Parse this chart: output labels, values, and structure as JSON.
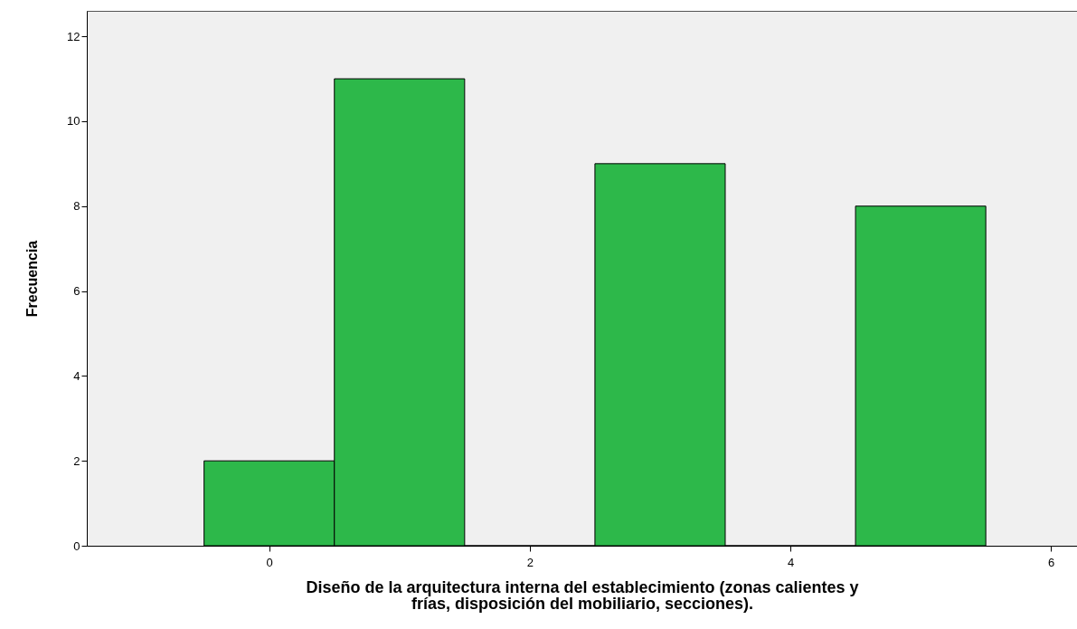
{
  "chart_data": {
    "type": "histogram",
    "xlabel": "Diseño de la arquitectura interna del establecimiento (zonas calientes y\nfrías, disposición del mobiliario, secciones).",
    "ylabel": "Frecuencia",
    "bins": [
      -0.5,
      0.5,
      1.5,
      2.5,
      3.5,
      4.5,
      5.5
    ],
    "values": [
      2,
      11,
      0,
      9,
      0,
      8
    ],
    "color": "#2db84a",
    "xlim": [
      -1.4,
      6.2
    ],
    "xticks": [
      0,
      2,
      4,
      6
    ],
    "ylim": [
      0,
      12.6
    ],
    "yticks": [
      0,
      2,
      4,
      6,
      8,
      10,
      12
    ],
    "grid": false
  }
}
